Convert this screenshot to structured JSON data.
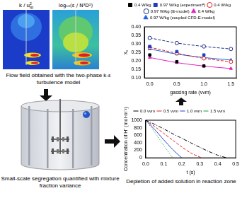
{
  "flow_field": {
    "labels": [
      {
        "main": "k / u",
        "sup": "2",
        "sub": "tip"
      },
      "log₁₀(ε / N³D²)"
    ],
    "caption": "Flow field obtained with the two-phase k-ε turbulence model"
  },
  "tank": {
    "caption": "Small-scale segregation quantified with mixture fraction variance"
  },
  "reaction_zone": {
    "caption": "Depletion of added solution in reaction zone"
  },
  "chart_data": [
    {
      "type": "scatter",
      "x_label": "gassing rate (vvm)",
      "y_label": "Xₛ",
      "xlim": [
        -0.1,
        1.6
      ],
      "xticks": [
        {
          "value": 0,
          "label": "0.0"
        },
        {
          "value": 0.5,
          "label": "0.5"
        },
        {
          "value": 1,
          "label": "1.0"
        },
        {
          "value": 1.5,
          "label": "1.5"
        }
      ],
      "ylim": [
        0.1,
        0.4
      ],
      "yticks": [
        {
          "value": 0.1,
          "label": "0.10"
        },
        {
          "value": 0.15,
          "label": "0.15"
        },
        {
          "value": 0.2,
          "label": "0.20"
        },
        {
          "value": 0.25,
          "label": "0.25"
        },
        {
          "value": 0.3,
          "label": "0.30"
        },
        {
          "value": 0.35,
          "label": "0.35"
        },
        {
          "value": 0.4,
          "label": "0.40"
        }
      ],
      "grid": false,
      "legend": "top",
      "series": [
        {
          "name": "0.4 W/kg",
          "color": "#000000",
          "marker": "square",
          "line_style": "none",
          "x": [
            0,
            0.5,
            1
          ],
          "values": [
            0.235,
            0.195,
            0.17
          ]
        },
        {
          "name": "0.97 W/kg (experimentᵃ)",
          "color": "#1f3fbf",
          "marker": "square",
          "line_style": "none",
          "x": [
            0,
            0.5,
            1
          ],
          "values": [
            0.285,
            0.255,
            0.235
          ]
        },
        {
          "name": "0.4 W/kg",
          "color": "#e02020",
          "marker": "open-circle",
          "line_style": "dashed",
          "x": [
            0,
            0.5,
            1,
            1.5
          ],
          "values": [
            0.28,
            0.245,
            0.215,
            0.195
          ]
        },
        {
          "name": "0.97 W/kg (E-model)",
          "color": "#1a2a8a",
          "marker": "open-circle",
          "line_style": "dashed",
          "x": [
            0,
            0.5,
            1,
            1.5
          ],
          "values": [
            0.335,
            0.305,
            0.285,
            0.27
          ]
        },
        {
          "name": "0.4 W/kg",
          "color": "#e020c0",
          "marker": "triangle",
          "line_style": "solid",
          "x": [
            0,
            0.5,
            1,
            1.5
          ],
          "values": [
            0.22,
            0.19,
            0.17,
            0.155
          ]
        },
        {
          "name": "0.97 W/kg (coupled CFD-E-model)",
          "color": "#2060e0",
          "marker": "triangle",
          "line_style": "solid",
          "x": [
            0,
            0.5,
            1,
            1.5
          ],
          "values": [
            0.27,
            0.24,
            0.22,
            0.205
          ]
        }
      ]
    },
    {
      "type": "line",
      "x_label": "t (s)",
      "y_label": "Concentration of H⁺ (mol·m⁻³)",
      "xlim": [
        0,
        0.5
      ],
      "xticks": [
        {
          "value": 0,
          "label": "0.0"
        },
        {
          "value": 0.1,
          "label": "0.1"
        },
        {
          "value": 0.2,
          "label": "0.2"
        },
        {
          "value": 0.3,
          "label": "0.3"
        },
        {
          "value": 0.4,
          "label": "0.4"
        },
        {
          "value": 0.5,
          "label": "0.5"
        }
      ],
      "ylim": [
        0,
        1000
      ],
      "yticks": [
        0,
        200,
        400,
        600,
        800,
        1000
      ],
      "grid": false,
      "legend": "top",
      "series": [
        {
          "name": "0.0 vvm",
          "color": "#000000",
          "line_style": "dashdot",
          "x": [
            0,
            0.05,
            0.1,
            0.15,
            0.2,
            0.25,
            0.3,
            0.35,
            0.4,
            0.45
          ],
          "values": [
            1000,
            890,
            770,
            640,
            520,
            400,
            280,
            170,
            70,
            0
          ]
        },
        {
          "name": "0.5 vvm",
          "color": "#e02020",
          "line_style": "dashed",
          "x": [
            0,
            0.05,
            0.1,
            0.15,
            0.2,
            0.25,
            0.31
          ],
          "values": [
            1000,
            830,
            650,
            470,
            290,
            130,
            0
          ]
        },
        {
          "name": "1.0 vvm",
          "color": "#1f3fdf",
          "line_style": "solid",
          "x": [
            0,
            0.05,
            0.1,
            0.15,
            0.2
          ],
          "values": [
            1000,
            750,
            480,
            220,
            0
          ]
        },
        {
          "name": "1.5 vvm",
          "color": "#10a030",
          "line_style": "dotted",
          "x": [
            0,
            0.05,
            0.1,
            0.15
          ],
          "values": [
            1000,
            680,
            330,
            0
          ]
        }
      ]
    }
  ]
}
